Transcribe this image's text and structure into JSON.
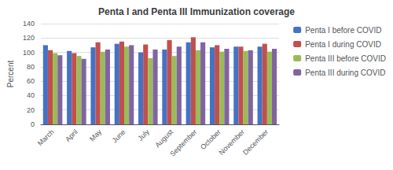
{
  "chart_data": {
    "type": "bar",
    "title": "Penta I and Penta III Immunization coverage",
    "ylabel": "Percent",
    "categories": [
      "March",
      "April",
      "May",
      "June",
      "July",
      "August",
      "September",
      "October",
      "November",
      "December"
    ],
    "series": [
      {
        "name": "Penta I before COVID",
        "color": "#4472C4",
        "values": [
          110,
          102,
          107,
          112,
          100,
          104,
          114,
          107,
          108,
          108
        ]
      },
      {
        "name": "Penta I during COVID",
        "color": "#C0504D",
        "values": [
          103,
          99,
          114,
          115,
          111,
          117,
          121,
          110,
          108,
          112
        ]
      },
      {
        "name": "Penta III before COVID",
        "color": "#9BBB59",
        "values": [
          99,
          95,
          101,
          108,
          92,
          95,
          103,
          101,
          102,
          101
        ]
      },
      {
        "name": "Penta III during COVID",
        "color": "#8064A2",
        "values": [
          96,
          91,
          104,
          110,
          104,
          108,
          114,
          105,
          103,
          105
        ]
      }
    ],
    "ylim": [
      0,
      140
    ],
    "yticks": [
      0,
      20,
      40,
      60,
      80,
      100,
      120,
      140
    ],
    "grid": true,
    "legend": "right"
  }
}
